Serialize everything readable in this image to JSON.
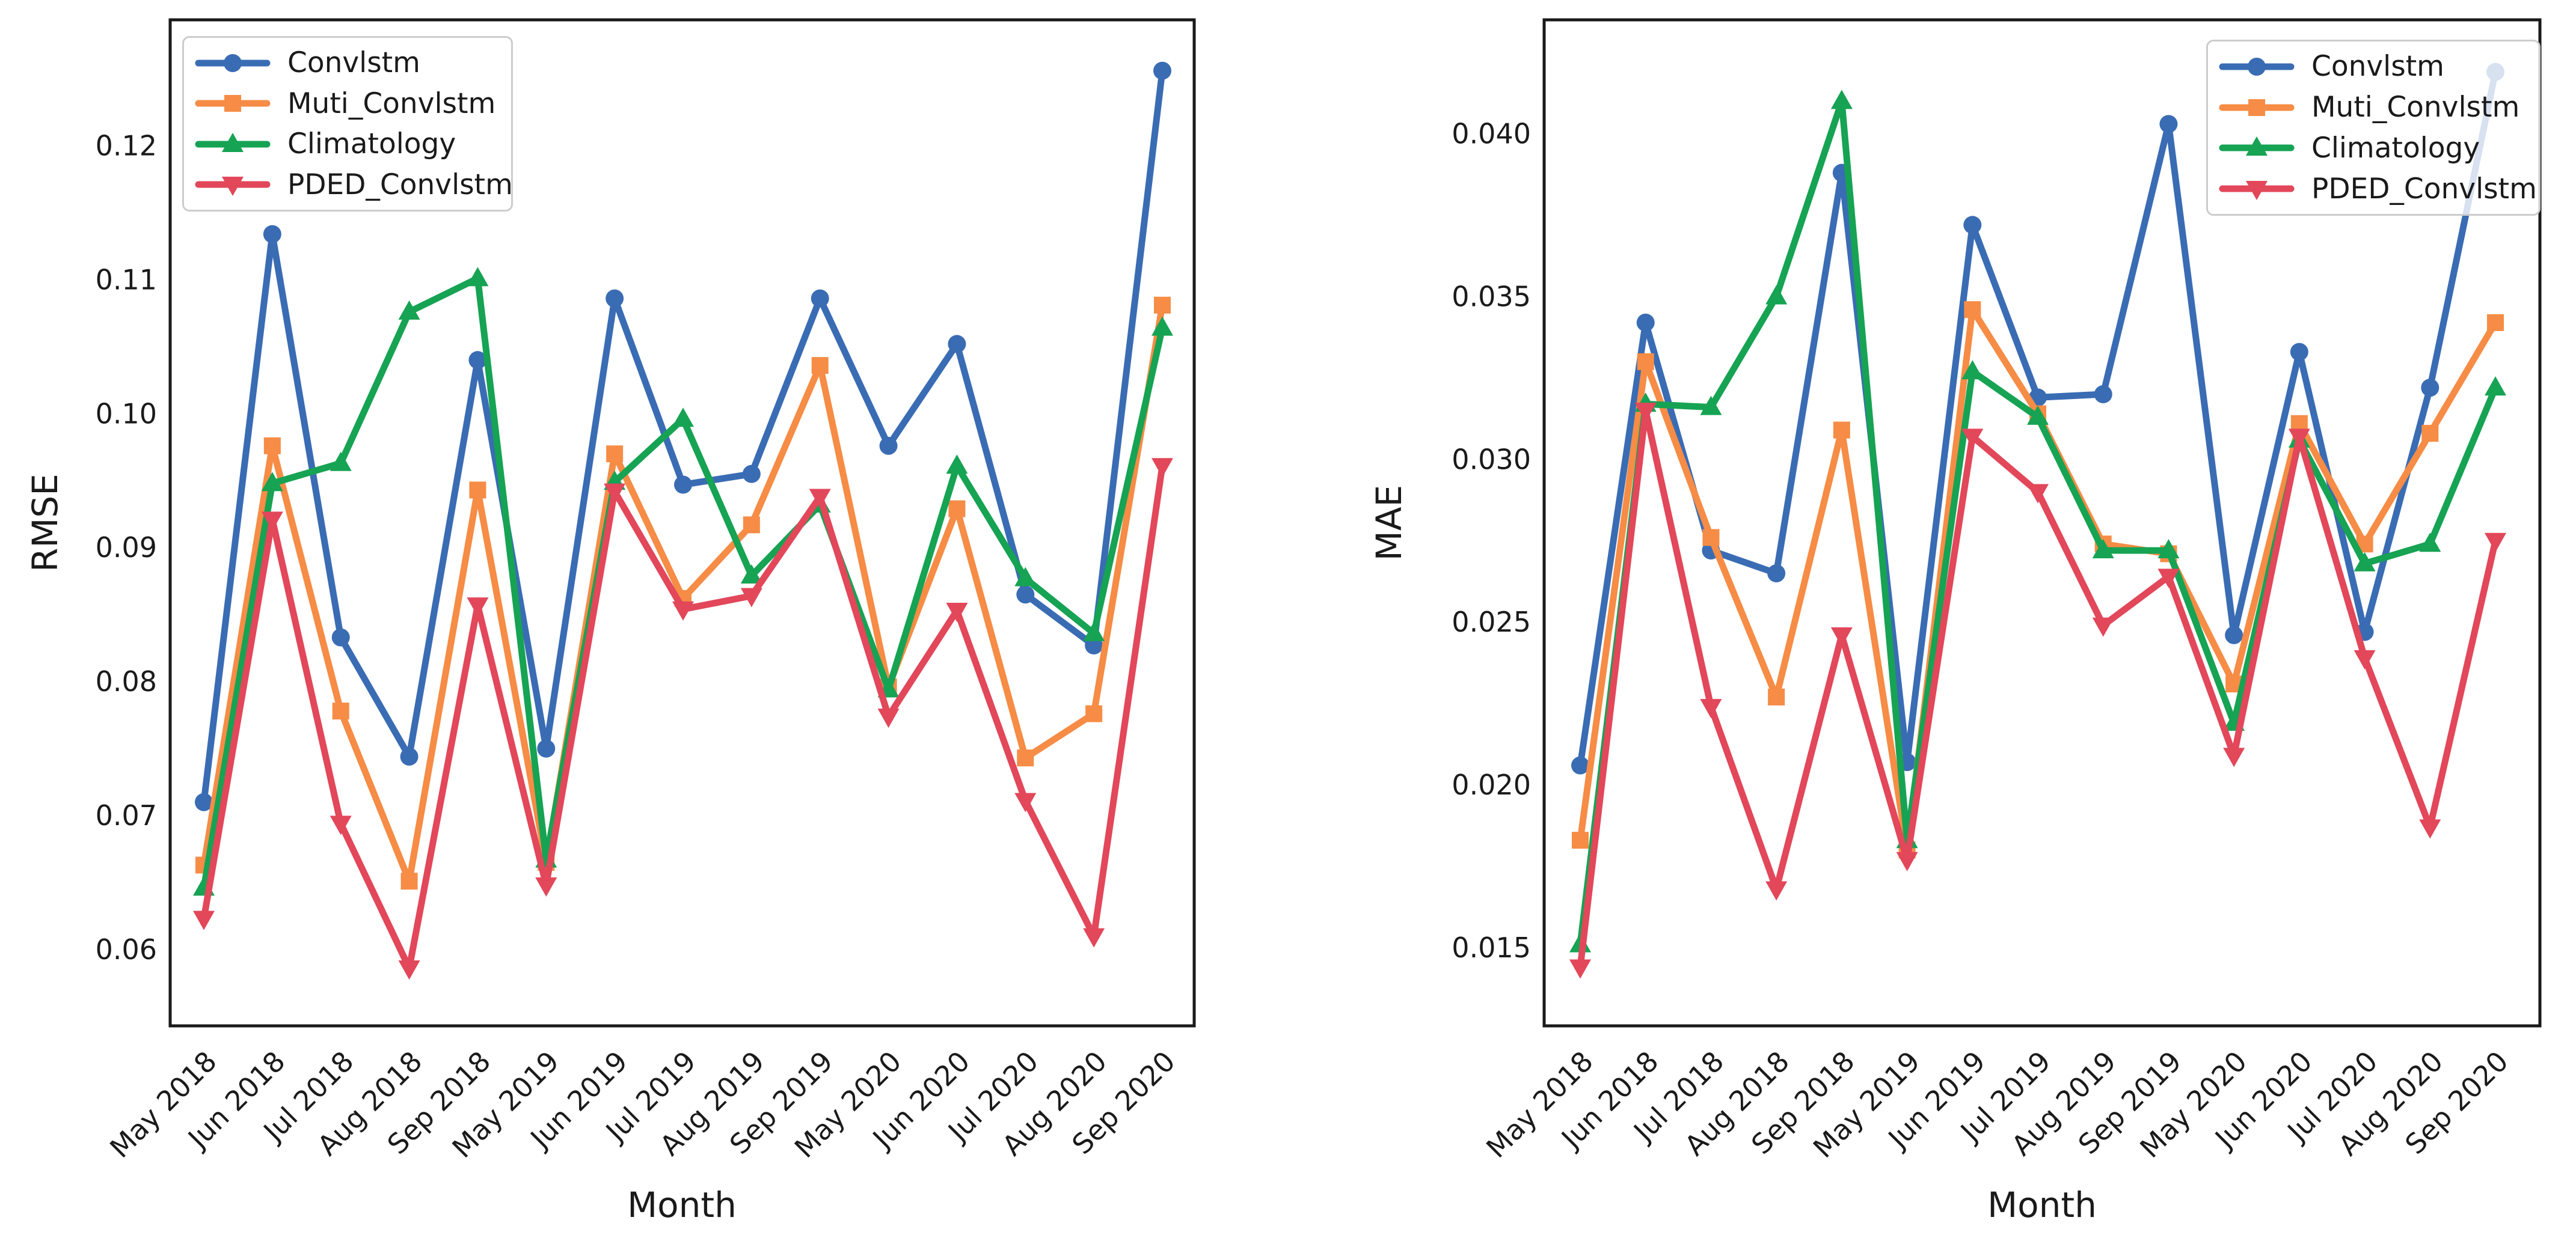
{
  "figure": {
    "background": "#ffffff",
    "text_color": "#1a1a1a",
    "spine_color": "#1a1a1a",
    "legend_border_color": "#cccccc"
  },
  "chart_data": [
    {
      "type": "line",
      "title": "",
      "xlabel": "Month",
      "ylabel": "RMSE",
      "grid": false,
      "legend_position": "upper left",
      "categories": [
        "May 2018",
        "Jun 2018",
        "Jul 2018",
        "Aug 2018",
        "Sep 2018",
        "May 2019",
        "Jun 2019",
        "Jul 2019",
        "Aug 2019",
        "Sep 2019",
        "May 2020",
        "Jun 2020",
        "Jul 2020",
        "Aug 2020",
        "Sep 2020"
      ],
      "ylim": [
        0.0543,
        0.1294
      ],
      "yticks": [
        0.06,
        0.07,
        0.08,
        0.09,
        0.1,
        0.11,
        0.12
      ],
      "ytick_labels": [
        "0.06",
        "0.07",
        "0.08",
        "0.09",
        "0.10",
        "0.11",
        "0.12"
      ],
      "series": [
        {
          "name": "Convlstm",
          "color": "#3a6cb4",
          "marker": "circle",
          "values": [
            0.071,
            0.1134,
            0.0833,
            0.0744,
            0.104,
            0.075,
            0.1086,
            0.0947,
            0.0955,
            0.1086,
            0.0976,
            0.1052,
            0.0865,
            0.0827,
            0.1256
          ]
        },
        {
          "name": "Muti_Convlstm",
          "color": "#f68c45",
          "marker": "square",
          "values": [
            0.0663,
            0.0976,
            0.0778,
            0.0651,
            0.0943,
            0.0665,
            0.097,
            0.0862,
            0.0917,
            0.1036,
            0.0796,
            0.0929,
            0.0743,
            0.0776,
            0.1081
          ]
        },
        {
          "name": "Climatology",
          "color": "#16a353",
          "marker": "triangle-up",
          "values": [
            0.0646,
            0.0948,
            0.0963,
            0.1076,
            0.1101,
            0.0667,
            0.0949,
            0.0996,
            0.0879,
            0.0932,
            0.0794,
            0.0961,
            0.0877,
            0.0836,
            0.1064
          ]
        },
        {
          "name": "PDED_Convlstm",
          "color": "#e2475a",
          "marker": "triangle-down",
          "values": [
            0.0623,
            0.0921,
            0.0694,
            0.0586,
            0.0857,
            0.0648,
            0.0942,
            0.0854,
            0.0864,
            0.0938,
            0.0774,
            0.0853,
            0.0711,
            0.061,
            0.0961
          ]
        }
      ]
    },
    {
      "type": "line",
      "title": "",
      "xlabel": "Month",
      "ylabel": "MAE",
      "grid": false,
      "legend_position": "upper right",
      "categories": [
        "May 2018",
        "Jun 2018",
        "Jul 2018",
        "Aug 2018",
        "Sep 2018",
        "May 2019",
        "Jun 2019",
        "Jul 2019",
        "Aug 2019",
        "Sep 2019",
        "May 2020",
        "Jun 2020",
        "Jul 2020",
        "Aug 2020",
        "Sep 2020"
      ],
      "ylim": [
        0.0126,
        0.0435
      ],
      "yticks": [
        0.015,
        0.02,
        0.025,
        0.03,
        0.035,
        0.04
      ],
      "ytick_labels": [
        "0.015",
        "0.020",
        "0.025",
        "0.030",
        "0.035",
        "0.040"
      ],
      "series": [
        {
          "name": "Convlstm",
          "color": "#3a6cb4",
          "marker": "circle",
          "values": [
            0.0206,
            0.0342,
            0.0272,
            0.0265,
            0.0388,
            0.0207,
            0.0372,
            0.0319,
            0.032,
            0.0403,
            0.0246,
            0.0333,
            0.0247,
            0.0322,
            0.0419
          ]
        },
        {
          "name": "Muti_Convlstm",
          "color": "#f68c45",
          "marker": "square",
          "values": [
            0.0183,
            0.033,
            0.0276,
            0.0227,
            0.0309,
            0.018,
            0.0346,
            0.0314,
            0.0274,
            0.0271,
            0.0231,
            0.0311,
            0.0274,
            0.0308,
            0.0342
          ]
        },
        {
          "name": "Climatology",
          "color": "#16a353",
          "marker": "triangle-up",
          "values": [
            0.0151,
            0.0317,
            0.0316,
            0.035,
            0.041,
            0.0183,
            0.0327,
            0.0313,
            0.0272,
            0.0272,
            0.0219,
            0.0306,
            0.0268,
            0.0274,
            0.0322
          ]
        },
        {
          "name": "PDED_Convlstm",
          "color": "#e2475a",
          "marker": "triangle-down",
          "values": [
            0.0144,
            0.0315,
            0.0224,
            0.0168,
            0.0246,
            0.0177,
            0.0307,
            0.029,
            0.0249,
            0.0264,
            0.0209,
            0.0307,
            0.0239,
            0.0187,
            0.0275
          ]
        }
      ]
    }
  ]
}
